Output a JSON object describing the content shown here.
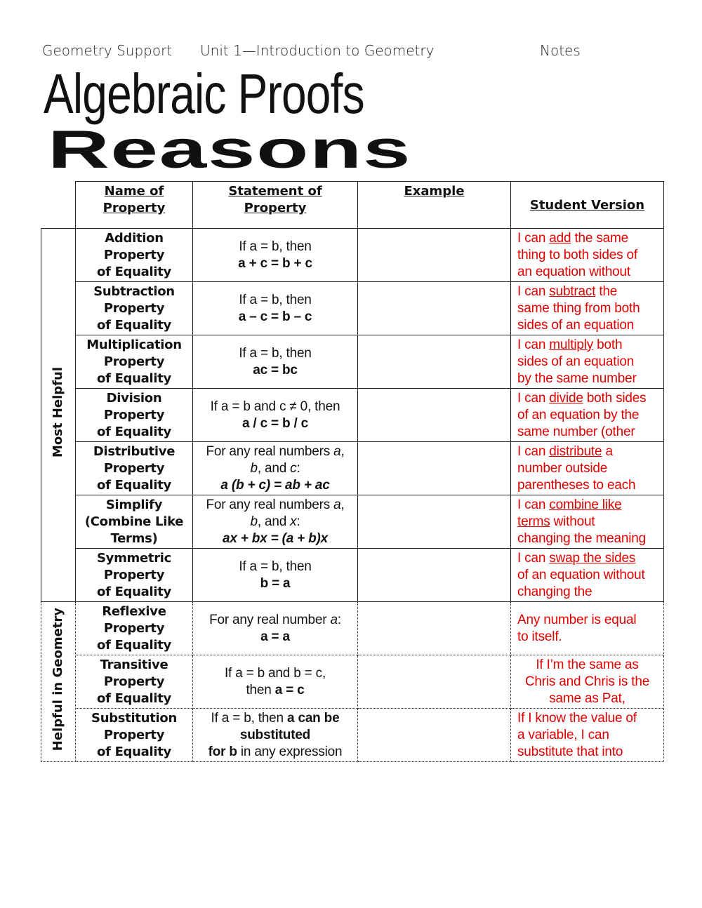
{
  "header": {
    "course": "Geometry Support",
    "unit": "Unit 1—Introduction to Geometry",
    "type": "Notes"
  },
  "title": {
    "line1": "Algebraic Proofs",
    "line2": "Reasons"
  },
  "columns": {
    "name": "Name of Property",
    "statement": "Statement of Property",
    "example": "Example",
    "student": "Student Version"
  },
  "column_lines": {
    "name": [
      "Name of",
      "Property"
    ],
    "statement": [
      "Statement of",
      "Property"
    ]
  },
  "groups": [
    {
      "label": "Most Helpful",
      "rows": 7
    },
    {
      "label": "Helpful in Geometry",
      "rows": 3
    }
  ],
  "accent_color": "#e00000",
  "rows": [
    {
      "name": [
        "Addition",
        "Property",
        "of Equality"
      ],
      "statement": [
        [
          {
            "t": "If a = b, then"
          }
        ],
        [
          {
            "t": "a + c = b + c",
            "s": "b"
          }
        ]
      ],
      "student": [
        [
          {
            "t": "I can "
          },
          {
            "t": "add",
            "s": "u"
          },
          {
            "t": " the same"
          }
        ],
        [
          {
            "t": "thing to both sides of"
          }
        ],
        [
          {
            "t": "an equation without"
          }
        ]
      ]
    },
    {
      "name": [
        "Subtraction",
        "Property",
        "of Equality"
      ],
      "statement": [
        [
          {
            "t": "If a = b, then"
          }
        ],
        [
          {
            "t": "a – c = b – c",
            "s": "b"
          }
        ]
      ],
      "student": [
        [
          {
            "t": "I can "
          },
          {
            "t": "subtract",
            "s": "u"
          },
          {
            "t": " the"
          }
        ],
        [
          {
            "t": "same thing from both"
          }
        ],
        [
          {
            "t": "sides of an equation"
          }
        ]
      ]
    },
    {
      "name": [
        "Multiplication",
        "Property",
        "of Equality"
      ],
      "statement": [
        [
          {
            "t": "If a = b, then"
          }
        ],
        [
          {
            "t": "ac = bc",
            "s": "b"
          }
        ]
      ],
      "student": [
        [
          {
            "t": "I can "
          },
          {
            "t": "multiply",
            "s": "u"
          },
          {
            "t": " both"
          }
        ],
        [
          {
            "t": "sides of an equation"
          }
        ],
        [
          {
            "t": "by the same number"
          }
        ]
      ]
    },
    {
      "name": [
        "Division",
        "Property",
        "of Equality"
      ],
      "statement": [
        [
          {
            "t": "If a = b and c ≠ 0, then"
          }
        ],
        [
          {
            "t": "a / c = b / c",
            "s": "b"
          }
        ]
      ],
      "student": [
        [
          {
            "t": "I can "
          },
          {
            "t": "divide",
            "s": "u"
          },
          {
            "t": " both sides"
          }
        ],
        [
          {
            "t": "of an equation by the"
          }
        ],
        [
          {
            "t": "same number (other"
          }
        ]
      ]
    },
    {
      "name": [
        "Distributive",
        "Property",
        "of Equality"
      ],
      "statement": [
        [
          {
            "t": "For any real numbers "
          },
          {
            "t": "a",
            "s": "i"
          },
          {
            "t": ","
          }
        ],
        [
          {
            "t": "b",
            "s": "i"
          },
          {
            "t": ", and "
          },
          {
            "t": "c",
            "s": "i"
          },
          {
            "t": ":"
          }
        ],
        [
          {
            "t": "a (b + c) = ab + ac",
            "s": "bi"
          }
        ]
      ],
      "student": [
        [
          {
            "t": "I can "
          },
          {
            "t": "distribute",
            "s": "u"
          },
          {
            "t": " a"
          }
        ],
        [
          {
            "t": "number outside"
          }
        ],
        [
          {
            "t": "parentheses to each"
          }
        ]
      ]
    },
    {
      "name": [
        "Simplify",
        "(Combine Like",
        "Terms)"
      ],
      "statement": [
        [
          {
            "t": "For any real numbers "
          },
          {
            "t": "a",
            "s": "i"
          },
          {
            "t": ","
          }
        ],
        [
          {
            "t": "b",
            "s": "i"
          },
          {
            "t": ", and "
          },
          {
            "t": "x",
            "s": "i"
          },
          {
            "t": ":"
          }
        ],
        [
          {
            "t": "ax + bx = (a + b)x",
            "s": "bi"
          }
        ]
      ],
      "student": [
        [
          {
            "t": "I can "
          },
          {
            "t": "combine like",
            "s": "u"
          }
        ],
        [
          {
            "t": "terms",
            "s": "u"
          },
          {
            "t": " without"
          }
        ],
        [
          {
            "t": "changing the meaning"
          }
        ]
      ]
    },
    {
      "name": [
        "Symmetric",
        "Property",
        "of Equality"
      ],
      "statement": [
        [
          {
            "t": "If a = b, then"
          }
        ],
        [
          {
            "t": "b = a",
            "s": "b"
          }
        ]
      ],
      "student": [
        [
          {
            "t": "I can "
          },
          {
            "t": "swap the sides",
            "s": "u"
          }
        ],
        [
          {
            "t": "of an equation without"
          }
        ],
        [
          {
            "t": "changing the"
          }
        ]
      ]
    },
    {
      "name": [
        "Reflexive",
        "Property",
        "of Equality"
      ],
      "statement": [
        [
          {
            "t": "For any real number "
          },
          {
            "t": "a",
            "s": "i"
          },
          {
            "t": ":"
          }
        ],
        [
          {
            "t": "a = a",
            "s": "b"
          }
        ]
      ],
      "student": [
        [
          {
            "t": "Any number is equal"
          }
        ],
        [
          {
            "t": "to itself."
          }
        ]
      ]
    },
    {
      "name": [
        "Transitive",
        "Property",
        "of Equality"
      ],
      "statement": [
        [
          {
            "t": "If a = b and b = c,"
          }
        ],
        [
          {
            "t": "then "
          },
          {
            "t": "a = c",
            "s": "b"
          }
        ]
      ],
      "student_centered": true,
      "student": [
        [
          {
            "t": "If I’m the same as"
          }
        ],
        [
          {
            "t": "Chris and Chris is the"
          }
        ],
        [
          {
            "t": "same as Pat,"
          }
        ]
      ]
    },
    {
      "name": [
        "Substitution",
        "Property",
        "of Equality"
      ],
      "statement": [
        [
          {
            "t": "If a = b, then "
          },
          {
            "t": "a can be",
            "s": "b"
          }
        ],
        [
          {
            "t": "substituted",
            "s": "b"
          }
        ],
        [
          {
            "t": "for b",
            "s": "b"
          },
          {
            "t": " in any expression"
          }
        ]
      ],
      "student": [
        [
          {
            "t": "If I know the value of"
          }
        ],
        [
          {
            "t": "a variable, I can"
          }
        ],
        [
          {
            "t": "substitute that into"
          }
        ]
      ]
    }
  ]
}
